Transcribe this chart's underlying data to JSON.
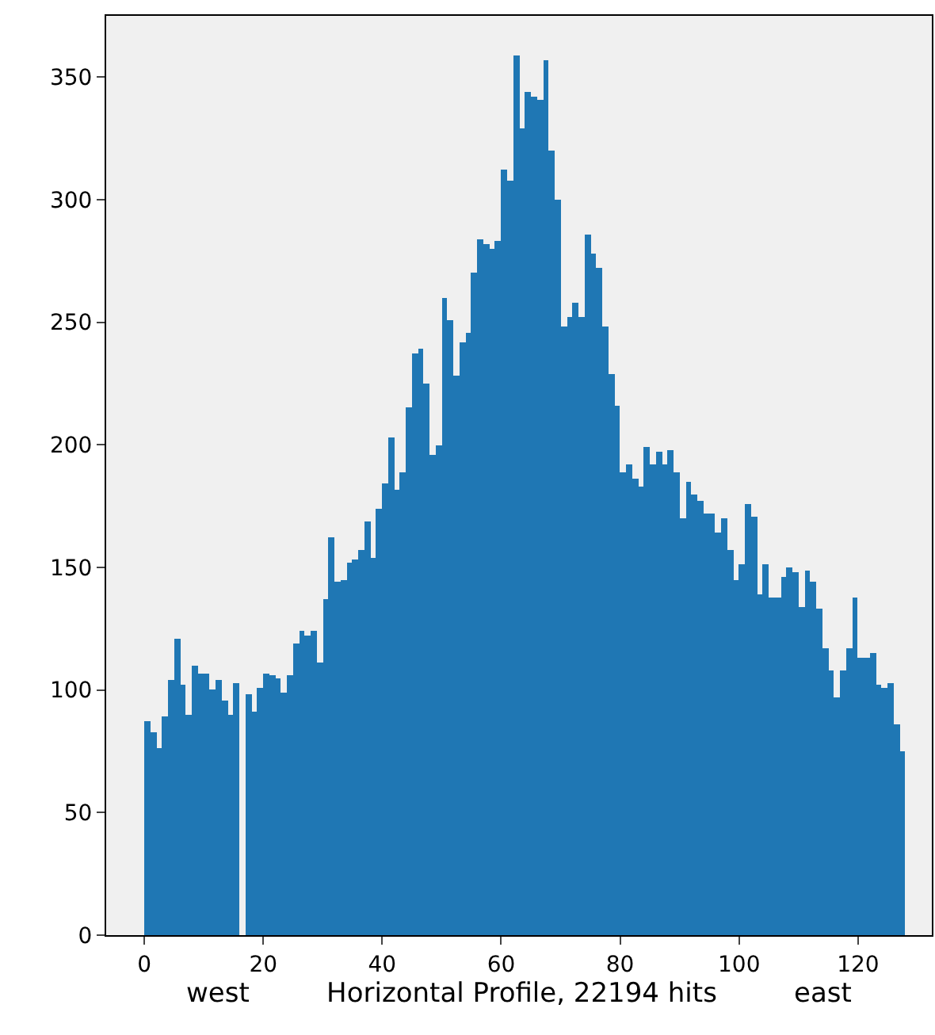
{
  "chart_data": {
    "type": "histogram",
    "xlabel": "west         Horizontal Profile, 22194 hits         east",
    "bins": [
      0,
      1,
      2,
      3,
      4,
      5,
      6,
      7,
      8,
      9,
      10,
      11,
      12,
      13,
      14,
      15,
      16,
      17,
      18,
      19,
      20,
      21,
      22,
      23,
      24,
      25,
      26,
      27,
      28,
      29,
      30,
      31,
      32,
      33,
      34,
      35,
      36,
      37,
      38,
      39,
      40,
      41,
      42,
      43,
      44,
      45,
      46,
      47,
      48,
      49,
      50,
      51,
      52,
      53,
      54,
      55,
      56,
      57,
      58,
      59,
      60,
      61,
      62,
      63,
      64,
      65,
      66,
      67,
      68,
      69,
      70,
      71,
      72,
      73,
      74,
      75,
      76,
      77,
      78,
      79,
      80,
      81,
      82,
      83,
      84,
      85,
      86,
      87,
      88,
      89,
      90,
      91,
      92,
      93,
      94,
      95,
      96,
      97,
      98,
      99,
      100,
      101,
      102,
      103,
      104,
      105,
      106,
      107,
      108,
      109,
      110,
      111,
      112,
      113,
      114,
      115,
      116,
      117,
      118,
      119,
      120,
      121,
      122,
      123,
      124,
      125,
      126,
      127,
      128
    ],
    "values": [
      87,
      83,
      76,
      89,
      104,
      121,
      102,
      90,
      110,
      107,
      107,
      100,
      104,
      96,
      90,
      103,
      0,
      98,
      91,
      101,
      107,
      106,
      105,
      99,
      106,
      119,
      124,
      122,
      124,
      111,
      137,
      162,
      144,
      145,
      152,
      153,
      157,
      169,
      154,
      174,
      184,
      203,
      182,
      189,
      215,
      237,
      239,
      225,
      196,
      200,
      260,
      251,
      228,
      242,
      246,
      270,
      284,
      282,
      280,
      283,
      312,
      308,
      359,
      329,
      344,
      342,
      341,
      357,
      320,
      300,
      248,
      252,
      258,
      252,
      286,
      278,
      272,
      248,
      229,
      216,
      189,
      192,
      186,
      183,
      199,
      192,
      197,
      192,
      198,
      189,
      170,
      185,
      180,
      177,
      172,
      172,
      164,
      170,
      157,
      145,
      151,
      176,
      171,
      139,
      151,
      138,
      138,
      146,
      150,
      148,
      134,
      149,
      144,
      133,
      117,
      108,
      97,
      108,
      117,
      138,
      113,
      113,
      115,
      102,
      101,
      103,
      86,
      75
    ],
    "color": "#1f77b4",
    "xlim": [
      -6.4,
      132.4
    ],
    "xticks": [
      0,
      20,
      40,
      60,
      80,
      100,
      120
    ],
    "ylim": [
      0,
      375
    ],
    "yticks": [
      0,
      50,
      100,
      150,
      200,
      250,
      300,
      350
    ],
    "grid": false,
    "legend": false
  }
}
